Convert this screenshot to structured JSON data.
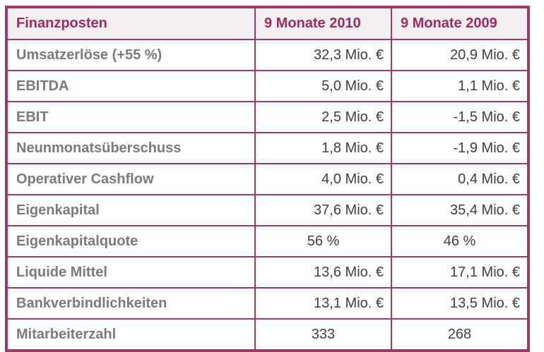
{
  "colors": {
    "frame": "#9a3b68",
    "header_text": "#9c2d60",
    "header_background": "#f3eff1",
    "label_text": "#7b7b7b",
    "value_text": "#404040",
    "page_background": "#ffffff"
  },
  "chart_data": {
    "type": "table",
    "title": "Finanzposten",
    "columns": [
      "Finanzposten",
      "9 Monate 2010",
      "9 Monate 2009"
    ],
    "rows": [
      {
        "label": "Umsatzerlöse (+55 %)",
        "m2010": "32,3 Mio. €",
        "m2009": "20,9 Mio. €"
      },
      {
        "label": "EBITDA",
        "m2010": "5,0 Mio. €",
        "m2009": "1,1 Mio. €"
      },
      {
        "label": "EBIT",
        "m2010": "2,5 Mio. €",
        "m2009": "-1,5 Mio. €"
      },
      {
        "label": "Neunmonatsüberschuss",
        "m2010": "1,8 Mio. €",
        "m2009": "-1,9 Mio. €"
      },
      {
        "label": "Operativer Cashflow",
        "m2010": "4,0 Mio. €",
        "m2009": "0,4 Mio. €"
      },
      {
        "label": "Eigenkapital",
        "m2010": "37,6 Mio. €",
        "m2009": "35,4 Mio. €"
      },
      {
        "label": "Eigenkapitalquote",
        "m2010": "56 %",
        "m2009": "46 %"
      },
      {
        "label": "Liquide Mittel",
        "m2010": "13,6 Mio. €",
        "m2009": "17,1 Mio. €"
      },
      {
        "label": "Bankverbindlichkeiten",
        "m2010": "13,1 Mio. €",
        "m2009": "13,5 Mio. €"
      },
      {
        "label": "Mitarbeiterzahl",
        "m2010": "333",
        "m2009": "268"
      }
    ]
  }
}
